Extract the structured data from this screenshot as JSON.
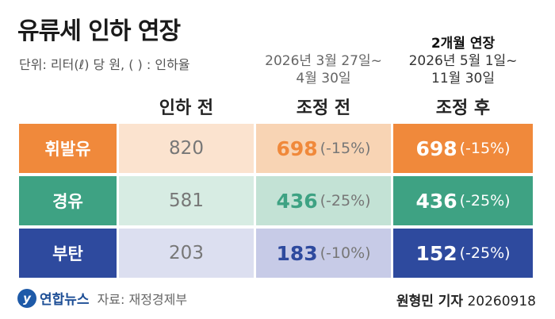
{
  "title": "유류세 인하 연장",
  "subtitle": "단위: 리터(ℓ) 당 원, ( ) : 인하율",
  "columns": {
    "before": "인하 전",
    "adjust_title": "조정 전",
    "adjust_period_1": "2026년 3월 27일~",
    "adjust_period_2": "4월 30일",
    "after_note": "2개월 연장",
    "after_period_1": "2026년 5월 1일~",
    "after_period_2": "11월 30일",
    "after_title": "조정 후"
  },
  "rows": [
    {
      "label": "휘발유",
      "before": "820",
      "adjust_value": "698",
      "adjust_rate": "(-15%)",
      "after_value": "698",
      "after_rate": "(-15%)"
    },
    {
      "label": "경유",
      "before": "581",
      "adjust_value": "436",
      "adjust_rate": "(-25%)",
      "after_value": "436",
      "after_rate": "(-25%)"
    },
    {
      "label": "부탄",
      "before": "203",
      "adjust_value": "183",
      "adjust_rate": "(-10%)",
      "after_value": "152",
      "after_rate": "(-25%)"
    }
  ],
  "colors": {
    "gasoline_dark": "#f0893b",
    "gasoline_light": "#fbe3cf",
    "gasoline_mid": "#f8d4b4",
    "diesel_dark": "#3ea283",
    "diesel_light": "#d7ece3",
    "diesel_mid": "#c3e2d5",
    "butane_dark": "#2e4a9e",
    "butane_light": "#dcdff0",
    "butane_mid": "#c7cbe7"
  },
  "footer": {
    "logo_text": "연합뉴스",
    "source": "자료: 재정경제부",
    "reporter": "원형민 기자",
    "date": "20260918"
  }
}
